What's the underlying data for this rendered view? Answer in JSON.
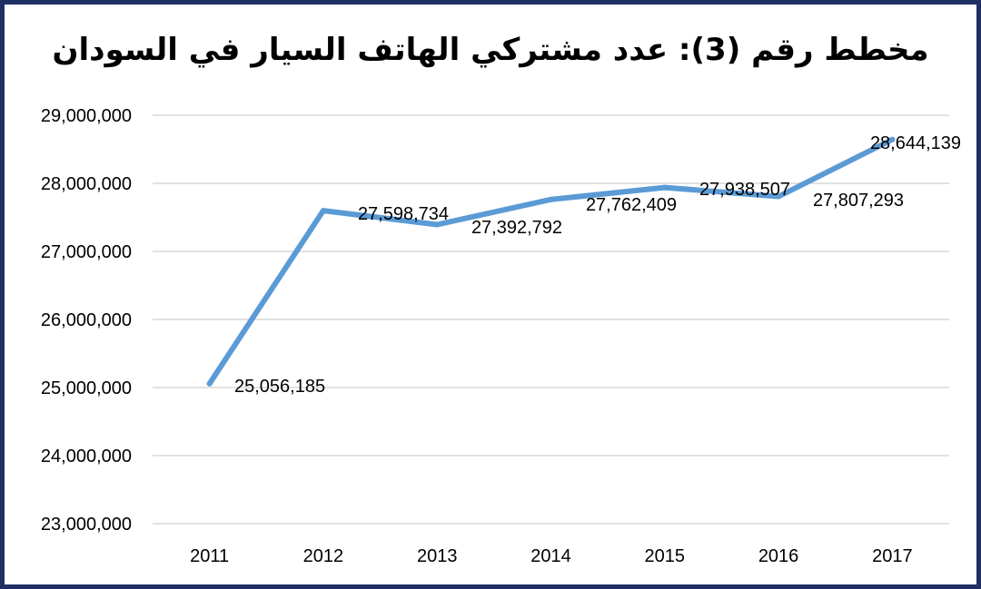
{
  "chart_data": {
    "type": "line",
    "title": "مخطط رقم (3): عدد مشتركي الهاتف السيار في السودان",
    "categories": [
      "2011",
      "2012",
      "2013",
      "2014",
      "2015",
      "2016",
      "2017"
    ],
    "series": [
      {
        "values": [
          25056185,
          27598734,
          27392792,
          27762409,
          27938507,
          27807293,
          28644139
        ],
        "data_labels": [
          "25,056,185",
          "27,598,734",
          "27,392,792",
          "27,762,409",
          "27,938,507",
          "27,807,293",
          "28,644,139"
        ]
      }
    ],
    "yticks": [
      "23,000,000",
      "24,000,000",
      "25,000,000",
      "26,000,000",
      "27,000,000",
      "28,000,000",
      "29,000,000"
    ],
    "ylim": [
      23000000,
      29000000
    ],
    "grid": true,
    "legend": "none"
  },
  "colors": {
    "line": "#5b9bd5",
    "grid": "#d9d9d9",
    "border": "#1f2f63"
  }
}
